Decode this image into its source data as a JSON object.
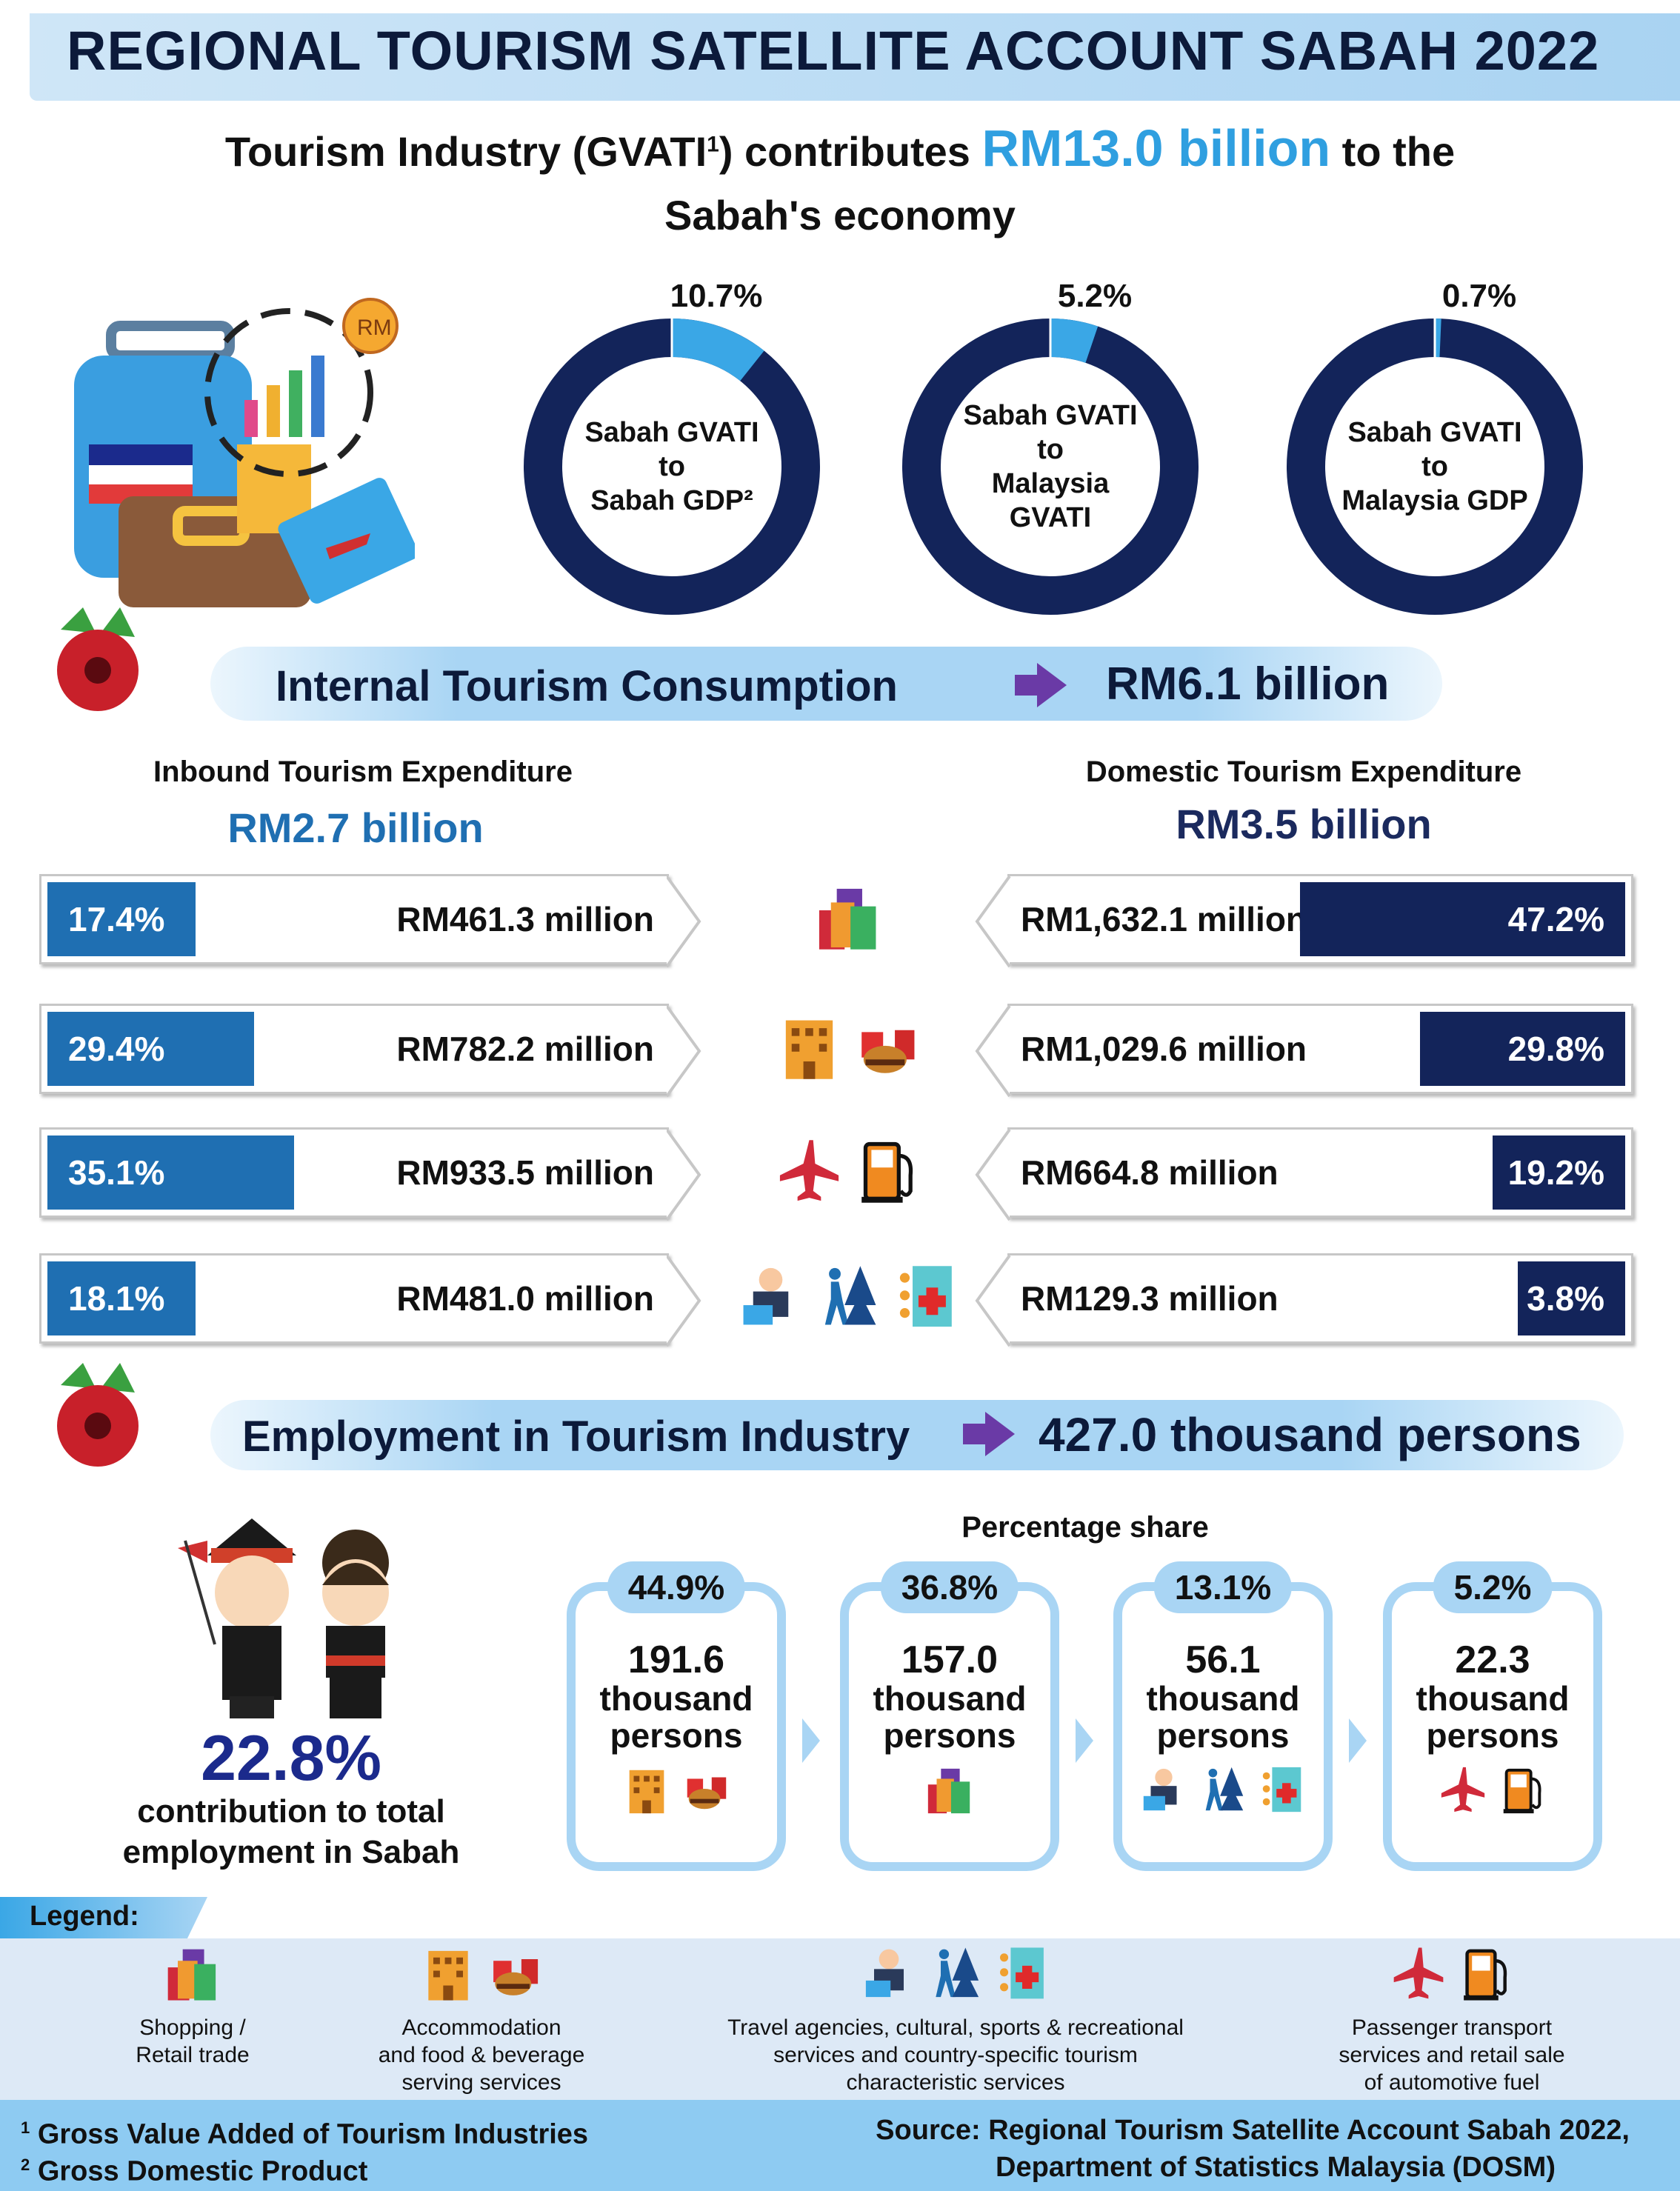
{
  "title": "REGIONAL TOURISM SATELLITE ACCOUNT SABAH 2022",
  "headline": {
    "prefix": "Tourism Industry (GVATI",
    "sup": "1",
    "mid": ") contributes ",
    "value": "RM13.0 billion",
    "suffix": " to the",
    "line2": "Sabah's economy"
  },
  "donuts": [
    {
      "percent_label": "10.7%",
      "value": 10.7,
      "label_lines": [
        "Sabah GVATI",
        "to",
        "Sabah GDP²"
      ]
    },
    {
      "percent_label": "5.2%",
      "value": 5.2,
      "label_lines": [
        "Sabah GVATI",
        "to",
        "Malaysia",
        "GVATI"
      ]
    },
    {
      "percent_label": "0.7%",
      "value": 0.7,
      "label_lines": [
        "Sabah GVATI",
        "to",
        "Malaysia GDP"
      ]
    }
  ],
  "internal": {
    "label": "Internal Tourism Consumption",
    "value": "RM6.1 billion"
  },
  "inbound": {
    "title": "Inbound Tourism Expenditure",
    "total": "RM2.7 billion",
    "rows": [
      {
        "pct": "17.4%",
        "value": 17.4,
        "amount": "RM461.3 million"
      },
      {
        "pct": "29.4%",
        "value": 29.4,
        "amount": "RM782.2 million"
      },
      {
        "pct": "35.1%",
        "value": 35.1,
        "amount": "RM933.5 million"
      },
      {
        "pct": "18.1%",
        "value": 18.1,
        "amount": "RM481.0 million"
      }
    ]
  },
  "domestic": {
    "title": "Domestic Tourism Expenditure",
    "total": "RM3.5 billion",
    "rows": [
      {
        "pct": "47.2%",
        "value": 47.2,
        "amount": "RM1,632.1 million"
      },
      {
        "pct": "29.8%",
        "value": 29.8,
        "amount": "RM1,029.6 million"
      },
      {
        "pct": "19.2%",
        "value": 19.2,
        "amount": "RM664.8 million"
      },
      {
        "pct": "3.8%",
        "value": 3.8,
        "amount": "RM129.3 million"
      }
    ]
  },
  "row_icons": [
    [
      "shopping-bags"
    ],
    [
      "hotel",
      "fast-food"
    ],
    [
      "airplane",
      "fuel-pump"
    ],
    [
      "travel-agent",
      "hiker",
      "medical"
    ]
  ],
  "employment": {
    "label": "Employment in Tourism Industry",
    "value": "427.0 thousand persons",
    "share_title": "Percentage share",
    "contribution": "22.8%",
    "contribution_lines": [
      "contribution to total",
      "employment in Sabah"
    ],
    "cards": [
      {
        "pct": "44.9%",
        "num": "191.6",
        "unit1": "thousand",
        "unit2": "persons",
        "icons": [
          "hotel",
          "fast-food"
        ]
      },
      {
        "pct": "36.8%",
        "num": "157.0",
        "unit1": "thousand",
        "unit2": "persons",
        "icons": [
          "shopping-bags"
        ]
      },
      {
        "pct": "13.1%",
        "num": "56.1",
        "unit1": "thousand",
        "unit2": "persons",
        "icons": [
          "travel-agent",
          "hiker",
          "medical"
        ]
      },
      {
        "pct": "5.2%",
        "num": "22.3",
        "unit1": "thousand",
        "unit2": "persons",
        "icons": [
          "airplane",
          "fuel-pump"
        ]
      }
    ]
  },
  "legend": {
    "title": "Legend:",
    "items": [
      {
        "lines": [
          "Shopping /",
          "Retail trade"
        ],
        "icons": [
          "shopping-bags"
        ]
      },
      {
        "lines": [
          "Accommodation",
          "and food & beverage",
          "serving services"
        ],
        "icons": [
          "hotel",
          "fast-food"
        ]
      },
      {
        "lines": [
          "Travel agencies, cultural, sports & recreational",
          "services and country-specific tourism",
          "characteristic services"
        ],
        "icons": [
          "travel-agent",
          "hiker",
          "medical"
        ]
      },
      {
        "lines": [
          "Passenger transport",
          "services and retail sale",
          "of automotive fuel"
        ],
        "icons": [
          "airplane",
          "fuel-pump"
        ]
      }
    ]
  },
  "footnotes": [
    "Gross Value Added of Tourism Industries",
    "Gross Domestic Product"
  ],
  "source": [
    "Source: Regional Tourism Satellite Account Sabah 2022,",
    "Department of Statistics Malaysia (DOSM)"
  ],
  "colors": {
    "navy": "#1b2a5e",
    "blue": "#1f6fb2",
    "light": "#3aa7e6",
    "band": "#a9d5f4"
  }
}
